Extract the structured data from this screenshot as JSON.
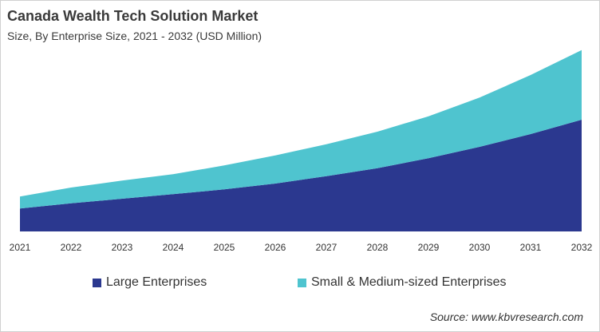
{
  "chart_data": {
    "type": "area",
    "stacked": true,
    "title": "Canada Wealth Tech Solution Market",
    "subtitle": "Size, By Enterprise Size, 2021 - 2032 (USD Million)",
    "xlabel": "",
    "ylabel": "",
    "y_axis_shown": false,
    "grid": false,
    "legend_position": "bottom",
    "categories": [
      "2021",
      "2022",
      "2023",
      "2024",
      "2025",
      "2026",
      "2027",
      "2028",
      "2029",
      "2030",
      "2031",
      "2032"
    ],
    "series": [
      {
        "name": "Large Enterprises",
        "color": "#2b388f",
        "values": [
          28.7,
          35.3,
          41,
          46.7,
          52.7,
          60,
          69.3,
          79.3,
          91.7,
          106,
          122,
          140
        ]
      },
      {
        "name": "Small & Medium-sized Enterprises",
        "color": "#4fc4cf",
        "values": [
          15,
          19.7,
          22.7,
          25,
          30,
          35.3,
          40,
          45.7,
          52.6,
          61.7,
          74,
          87.3
        ]
      }
    ],
    "source": "Source: www.kbvresearch.com"
  }
}
